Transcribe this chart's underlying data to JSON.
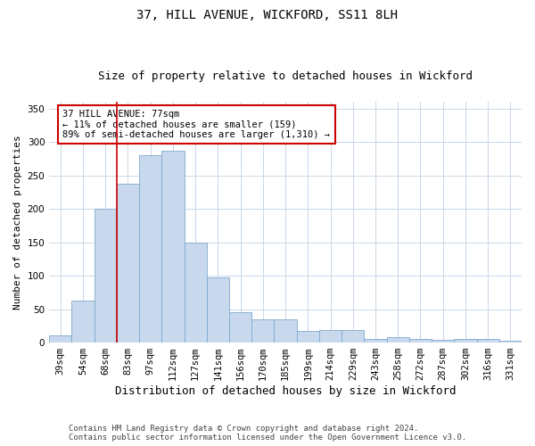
{
  "title": "37, HILL AVENUE, WICKFORD, SS11 8LH",
  "subtitle": "Size of property relative to detached houses in Wickford",
  "xlabel": "Distribution of detached houses by size in Wickford",
  "ylabel": "Number of detached properties",
  "categories": [
    "39sqm",
    "54sqm",
    "68sqm",
    "83sqm",
    "97sqm",
    "112sqm",
    "127sqm",
    "141sqm",
    "156sqm",
    "170sqm",
    "185sqm",
    "199sqm",
    "214sqm",
    "229sqm",
    "243sqm",
    "258sqm",
    "272sqm",
    "287sqm",
    "302sqm",
    "316sqm",
    "331sqm"
  ],
  "values": [
    11,
    63,
    200,
    237,
    280,
    287,
    150,
    97,
    46,
    35,
    35,
    18,
    19,
    19,
    5,
    8,
    6,
    4,
    5,
    5,
    3
  ],
  "bar_color": "#c9d9ed",
  "bar_edge_color": "#7fa8cd",
  "vline_x_index": 2,
  "vline_color": "#cc0000",
  "annotation_text": "37 HILL AVENUE: 77sqm\n← 11% of detached houses are smaller (159)\n89% of semi-detached houses are larger (1,310) →",
  "annotation_box_color": "#ffffff",
  "annotation_box_edge": "#cc0000",
  "ylim": [
    0,
    360
  ],
  "yticks": [
    0,
    50,
    100,
    150,
    200,
    250,
    300,
    350
  ],
  "footnote1": "Contains HM Land Registry data © Crown copyright and database right 2024.",
  "footnote2": "Contains public sector information licensed under the Open Government Licence v3.0.",
  "bg_color": "#ffffff",
  "grid_color": "#c8d8e8",
  "title_fontsize": 10,
  "subtitle_fontsize": 9,
  "ylabel_fontsize": 8,
  "xlabel_fontsize": 9,
  "tick_fontsize": 7.5,
  "annot_fontsize": 7.5,
  "footnote_fontsize": 6.5
}
